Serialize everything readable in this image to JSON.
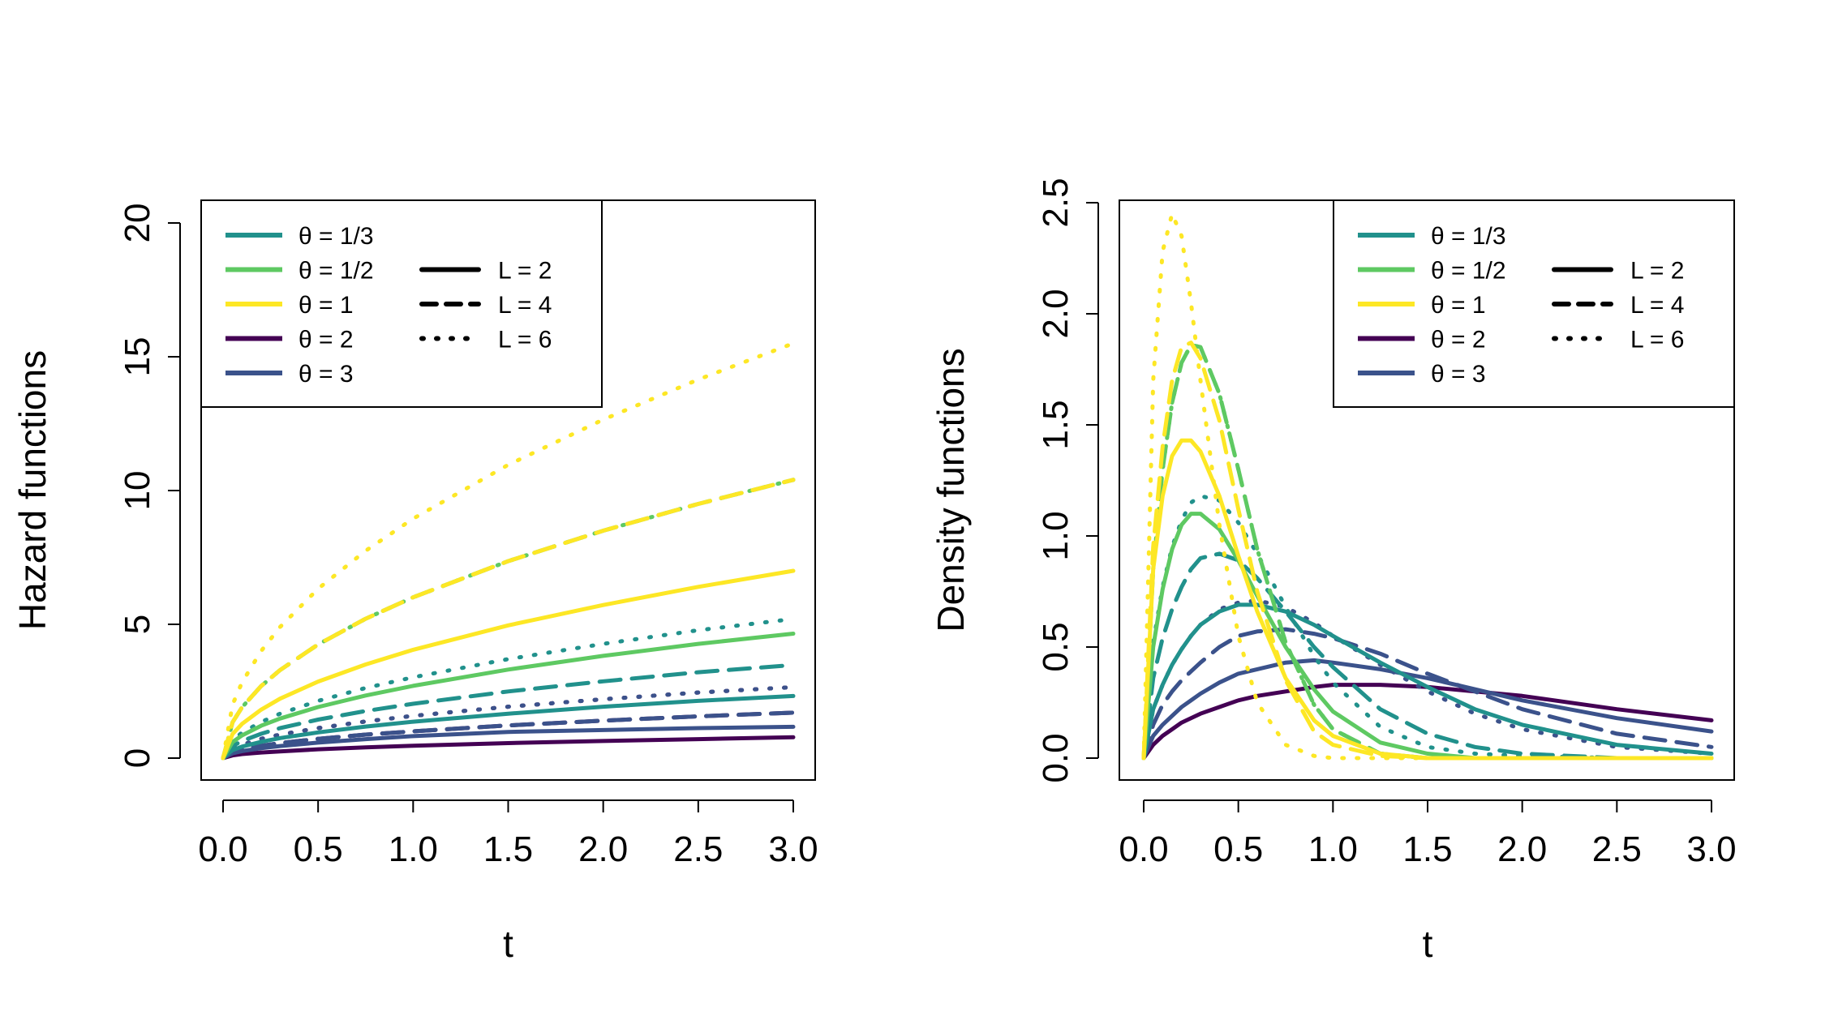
{
  "colors": {
    "theta_1_3": "#440154",
    "theta_1_2": "#3b528b",
    "theta_1": "#21918c",
    "theta_2": "#5ec962",
    "theta_3": "#fde725"
  },
  "chart_data": [
    {
      "type": "line",
      "xlabel": "t",
      "ylabel": "Hazard functions",
      "xlim": [
        0,
        3
      ],
      "ylim": [
        0,
        20
      ],
      "xticks": [
        "0.0",
        "0.5",
        "1.0",
        "1.5",
        "2.0",
        "2.5",
        "3.0"
      ],
      "yticks": [
        "0",
        "5",
        "10",
        "15",
        "20"
      ],
      "grid": false,
      "legend_placement": "top-left",
      "legend": {
        "theta": [
          "θ = 1/3",
          "θ = 1/2",
          "θ = 1",
          "θ = 2",
          "θ = 3"
        ],
        "L": [
          "L = 2",
          "L = 4",
          "L = 6"
        ]
      },
      "x": [
        0,
        0.05,
        0.1,
        0.2,
        0.3,
        0.5,
        0.75,
        1.0,
        1.5,
        2.0,
        2.5,
        3.0
      ],
      "series": [
        {
          "theta": "1/3",
          "L": 2,
          "y": [
            0,
            0.1,
            0.15,
            0.21,
            0.25,
            0.33,
            0.4,
            0.46,
            0.56,
            0.64,
            0.71,
            0.78
          ]
        },
        {
          "theta": "1/3",
          "L": 4,
          "y": [
            0,
            0.22,
            0.32,
            0.46,
            0.56,
            0.72,
            0.88,
            1.0,
            1.22,
            1.4,
            1.56,
            1.7
          ]
        },
        {
          "theta": "1/3",
          "L": 6,
          "y": [
            0,
            0.35,
            0.5,
            0.72,
            0.88,
            1.12,
            1.37,
            1.58,
            1.92,
            2.2,
            2.45,
            2.65
          ]
        },
        {
          "theta": "1/2",
          "L": 2,
          "y": [
            0,
            0.18,
            0.26,
            0.37,
            0.45,
            0.58,
            0.71,
            0.82,
            0.98,
            1.05,
            1.12,
            1.17
          ]
        },
        {
          "theta": "1/2",
          "L": 4,
          "y": [
            0,
            0.22,
            0.32,
            0.46,
            0.56,
            0.72,
            0.88,
            1.0,
            1.22,
            1.4,
            1.56,
            1.7
          ]
        },
        {
          "theta": "1/2",
          "L": 6,
          "y": [
            0,
            0.35,
            0.5,
            0.72,
            0.88,
            1.12,
            1.37,
            1.58,
            1.92,
            2.2,
            2.45,
            2.65
          ]
        },
        {
          "theta": "1",
          "L": 2,
          "y": [
            0,
            0.3,
            0.43,
            0.61,
            0.75,
            0.96,
            1.18,
            1.36,
            1.66,
            1.92,
            2.14,
            2.32
          ]
        },
        {
          "theta": "1",
          "L": 4,
          "y": [
            0,
            0.45,
            0.64,
            0.91,
            1.12,
            1.44,
            1.76,
            2.03,
            2.49,
            2.87,
            3.21,
            3.48
          ]
        },
        {
          "theta": "1",
          "L": 6,
          "y": [
            0,
            0.67,
            0.95,
            1.35,
            1.66,
            2.14,
            2.62,
            3.02,
            3.7,
            4.27,
            4.78,
            5.2
          ]
        },
        {
          "theta": "2",
          "L": 2,
          "y": [
            0,
            0.6,
            0.85,
            1.21,
            1.48,
            1.91,
            2.34,
            2.7,
            3.31,
            3.82,
            4.27,
            4.65
          ]
        },
        {
          "theta": "2",
          "L": 4,
          "y": [
            0,
            1.34,
            1.9,
            2.69,
            3.29,
            4.25,
            5.21,
            6.01,
            7.36,
            8.5,
            9.5,
            10.4
          ]
        },
        {
          "theta": "2",
          "L": 6,
          "y": [
            0,
            1.34,
            1.9,
            2.69,
            3.29,
            4.25,
            5.21,
            6.01,
            7.36,
            8.5,
            9.5,
            10.4
          ]
        },
        {
          "theta": "3",
          "L": 2,
          "y": [
            0,
            0.9,
            1.28,
            1.81,
            2.22,
            2.86,
            3.5,
            4.05,
            4.96,
            5.72,
            6.4,
            7.0
          ]
        },
        {
          "theta": "3",
          "L": 4,
          "y": [
            0,
            1.34,
            1.9,
            2.69,
            3.29,
            4.25,
            5.21,
            6.01,
            7.36,
            8.5,
            9.5,
            10.4
          ]
        },
        {
          "theta": "3",
          "L": 6,
          "y": [
            0,
            2.0,
            2.83,
            4.0,
            4.9,
            6.33,
            7.75,
            8.95,
            10.96,
            12.65,
            14.15,
            15.5
          ]
        }
      ]
    },
    {
      "type": "line",
      "xlabel": "t",
      "ylabel": "Density functions",
      "xlim": [
        0,
        3
      ],
      "ylim": [
        0,
        2.5
      ],
      "xticks": [
        "0.0",
        "0.5",
        "1.0",
        "1.5",
        "2.0",
        "2.5",
        "3.0"
      ],
      "yticks": [
        "0.0",
        "0.5",
        "1.0",
        "1.5",
        "2.0",
        "2.5"
      ],
      "grid": false,
      "legend_placement": "top-right",
      "legend": {
        "theta": [
          "θ = 1/3",
          "θ = 1/2",
          "θ = 1",
          "θ = 2",
          "θ = 3"
        ],
        "L": [
          "L = 2",
          "L = 4",
          "L = 6"
        ]
      },
      "x": [
        0,
        0.05,
        0.1,
        0.15,
        0.2,
        0.25,
        0.3,
        0.4,
        0.5,
        0.6,
        0.75,
        0.9,
        1.0,
        1.25,
        1.5,
        1.75,
        2.0,
        2.5,
        3.0
      ],
      "series": [
        {
          "theta": "1/3",
          "L": 2,
          "y": [
            0,
            0.06,
            0.1,
            0.13,
            0.16,
            0.18,
            0.2,
            0.23,
            0.26,
            0.28,
            0.3,
            0.32,
            0.33,
            0.33,
            0.32,
            0.3,
            0.28,
            0.22,
            0.17
          ]
        },
        {
          "theta": "1/2",
          "L": 2,
          "y": [
            0,
            0.1,
            0.15,
            0.19,
            0.23,
            0.26,
            0.29,
            0.34,
            0.38,
            0.4,
            0.43,
            0.44,
            0.43,
            0.4,
            0.36,
            0.31,
            0.26,
            0.18,
            0.12
          ]
        },
        {
          "theta": "1/2",
          "L": 4,
          "y": [
            0,
            0.15,
            0.24,
            0.3,
            0.35,
            0.39,
            0.43,
            0.5,
            0.55,
            0.57,
            0.58,
            0.56,
            0.54,
            0.47,
            0.38,
            0.3,
            0.22,
            0.11,
            0.05
          ]
        },
        {
          "theta": "1/2",
          "L": 6,
          "y": [
            0,
            0.22,
            0.33,
            0.42,
            0.49,
            0.55,
            0.6,
            0.67,
            0.7,
            0.71,
            0.68,
            0.61,
            0.55,
            0.42,
            0.3,
            0.2,
            0.13,
            0.05,
            0.02
          ]
        },
        {
          "theta": "1",
          "L": 2,
          "y": [
            0,
            0.22,
            0.33,
            0.42,
            0.49,
            0.55,
            0.6,
            0.66,
            0.69,
            0.69,
            0.66,
            0.6,
            0.55,
            0.43,
            0.32,
            0.22,
            0.15,
            0.06,
            0.02
          ]
        },
        {
          "theta": "1",
          "L": 4,
          "y": [
            0,
            0.36,
            0.54,
            0.67,
            0.77,
            0.85,
            0.9,
            0.92,
            0.89,
            0.81,
            0.66,
            0.5,
            0.41,
            0.22,
            0.11,
            0.05,
            0.02,
            0.0,
            0.0
          ]
        },
        {
          "theta": "1",
          "L": 6,
          "y": [
            0,
            0.52,
            0.77,
            0.95,
            1.07,
            1.15,
            1.18,
            1.16,
            1.06,
            0.92,
            0.68,
            0.46,
            0.34,
            0.14,
            0.05,
            0.02,
            0.01,
            0.0,
            0.0
          ]
        },
        {
          "theta": "2",
          "L": 2,
          "y": [
            0,
            0.5,
            0.76,
            0.94,
            1.05,
            1.1,
            1.1,
            1.03,
            0.89,
            0.73,
            0.5,
            0.31,
            0.21,
            0.07,
            0.02,
            0.0,
            0.0,
            0.0,
            0.0
          ]
        },
        {
          "theta": "2",
          "L": 4,
          "y": [
            0,
            0.85,
            1.3,
            1.6,
            1.78,
            1.86,
            1.85,
            1.64,
            1.3,
            0.94,
            0.52,
            0.24,
            0.13,
            0.02,
            0.0,
            0.0,
            0.0,
            0.0,
            0.0
          ]
        },
        {
          "theta": "2",
          "L": 6,
          "y": [
            0,
            0.85,
            1.3,
            1.6,
            1.78,
            1.86,
            1.85,
            1.64,
            1.3,
            0.94,
            0.52,
            0.24,
            0.13,
            0.02,
            0.0,
            0.0,
            0.0,
            0.0,
            0.0
          ]
        },
        {
          "theta": "3",
          "L": 2,
          "y": [
            0,
            0.85,
            1.18,
            1.36,
            1.43,
            1.43,
            1.38,
            1.18,
            0.91,
            0.66,
            0.36,
            0.17,
            0.1,
            0.02,
            0.0,
            0.0,
            0.0,
            0.0,
            0.0
          ]
        },
        {
          "theta": "3",
          "L": 4,
          "y": [
            0,
            0.95,
            1.4,
            1.7,
            1.85,
            1.87,
            1.8,
            1.52,
            1.12,
            0.75,
            0.35,
            0.12,
            0.06,
            0.01,
            0.0,
            0.0,
            0.0,
            0.0,
            0.0
          ]
        },
        {
          "theta": "3",
          "L": 6,
          "y": [
            0,
            1.7,
            2.28,
            2.45,
            2.35,
            2.05,
            1.7,
            1.05,
            0.55,
            0.25,
            0.06,
            0.01,
            0.0,
            0.0,
            0.0,
            0.0,
            0.0,
            0.0,
            0.0
          ]
        }
      ]
    }
  ]
}
